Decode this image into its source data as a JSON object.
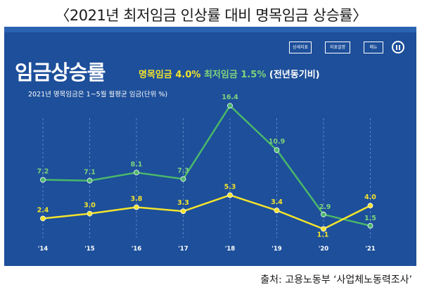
{
  "outer_title": "〈2021년 최저임금 인상률 대비 명목임금 상승률〉",
  "panel": {
    "headline": "임금상승률",
    "nominal_text": "명목임금 4.0%",
    "minimum_text": "최저임금 1.5%",
    "yoy_text": "(전년동기비)",
    "caption": "2021년 명목임금은 1~5월 월평균 임금(단위 %)",
    "buttons": [
      "상세지표",
      "지표설명",
      "메뉴"
    ]
  },
  "source": "출처: 고용노동부 ‘사업체노동력조사’",
  "colors": {
    "panel_bg": "#1d4f9a",
    "minimum": "#4bb86a",
    "nominal": "#f3e32c"
  },
  "chart_data": {
    "type": "line",
    "categories": [
      "'14",
      "'15",
      "'16",
      "'17",
      "'18",
      "'19",
      "'20",
      "'21"
    ],
    "series": [
      {
        "name": "최저임금",
        "values": [
          7.2,
          7.1,
          8.1,
          7.3,
          16.4,
          10.9,
          2.9,
          1.5
        ],
        "labels": [
          "7.2",
          "7.1",
          "8.1",
          "7.3",
          "16.4",
          "10.9",
          "2.9",
          "1.5"
        ]
      },
      {
        "name": "명목임금",
        "values": [
          2.4,
          3.0,
          3.8,
          3.3,
          5.3,
          3.4,
          1.1,
          4.0
        ],
        "labels": [
          "2.4",
          "3.0",
          "3.8",
          "3.3",
          "5.3",
          "3.4",
          "1.1",
          "4.0"
        ]
      }
    ],
    "ylim": [
      0,
      20
    ],
    "grid": true
  }
}
